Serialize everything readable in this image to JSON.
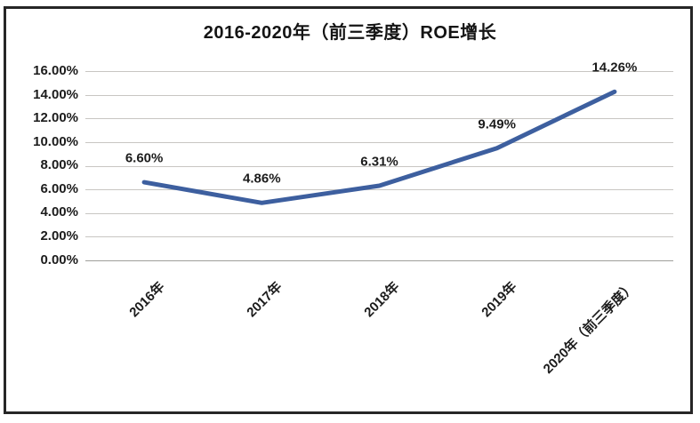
{
  "chart_data": {
    "type": "line",
    "title": "2016-2020年（前三季度）ROE增长",
    "categories": [
      "2016年",
      "2017年",
      "2018年",
      "2019年",
      "2020年（前三季度）"
    ],
    "values": [
      6.6,
      4.86,
      6.31,
      9.49,
      14.26
    ],
    "data_labels": [
      "6.60%",
      "4.86%",
      "6.31%",
      "9.49%",
      "14.26%"
    ],
    "y_ticks": [
      "16.00%",
      "14.00%",
      "12.00%",
      "10.00%",
      "8.00%",
      "6.00%",
      "4.00%",
      "2.00%",
      "0.00%"
    ],
    "xlabel": "",
    "ylabel": "",
    "ylim": [
      0,
      16
    ],
    "y_tick_step": 2,
    "grid": "horizontal",
    "legend": "none",
    "line_color": "#3d5f9f",
    "gridline_color": "#c8c6c2",
    "axis_color": "#9e9e9a",
    "frame_color": "#262626",
    "text_color": "#1c1c1c"
  }
}
